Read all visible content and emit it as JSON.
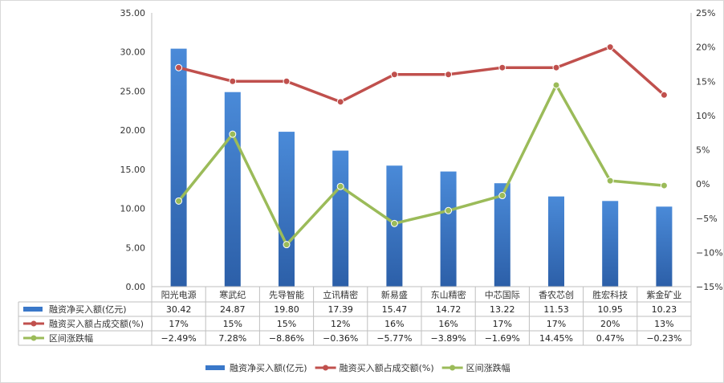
{
  "chart_data": {
    "type": "bar+line",
    "categories": [
      "阳光电源",
      "寒武纪",
      "先导智能",
      "立讯精密",
      "新易盛",
      "东山精密",
      "中芯国际",
      "香农芯创",
      "胜宏科技",
      "紫金矿业"
    ],
    "series": [
      {
        "name": "融资净买入额(亿元)",
        "type": "bar",
        "axis": "left",
        "color": "#3a78c9",
        "values": [
          30.42,
          24.87,
          19.8,
          17.39,
          15.47,
          14.72,
          13.22,
          11.53,
          10.95,
          10.23
        ],
        "labels": [
          "30.42",
          "24.87",
          "19.80",
          "17.39",
          "15.47",
          "14.72",
          "13.22",
          "11.53",
          "10.95",
          "10.23"
        ]
      },
      {
        "name": "融资买入额占成交额(%)",
        "type": "line",
        "axis": "right",
        "color": "#c0504d",
        "values": [
          17,
          15,
          15,
          12,
          16,
          16,
          17,
          17,
          20,
          13
        ],
        "labels": [
          "17%",
          "15%",
          "15%",
          "12%",
          "16%",
          "16%",
          "17%",
          "17%",
          "20%",
          "13%"
        ]
      },
      {
        "name": "区间涨跌幅",
        "type": "line",
        "axis": "right",
        "color": "#9bbb59",
        "values": [
          -2.49,
          7.28,
          -8.86,
          -0.36,
          -5.77,
          -3.89,
          -1.69,
          14.45,
          0.47,
          -0.23
        ],
        "labels": [
          "-2.49%",
          "7.28%",
          "-8.86%",
          "-0.36%",
          "-5.77%",
          "-3.89%",
          "-1.69%",
          "14.45%",
          "0.47%",
          "-0.23%"
        ]
      }
    ],
    "left_axis": {
      "ylim": [
        0,
        35
      ],
      "ticks": [
        "0.00",
        "5.00",
        "10.00",
        "15.00",
        "20.00",
        "25.00",
        "30.00",
        "35.00"
      ]
    },
    "right_axis": {
      "ylim": [
        -15,
        25
      ],
      "ticks": [
        "-15%",
        "-10%",
        "-5%",
        "0%",
        "5%",
        "10%",
        "15%",
        "20%",
        "25%"
      ]
    },
    "grid": false,
    "legend": "bottom",
    "data_table": true
  }
}
